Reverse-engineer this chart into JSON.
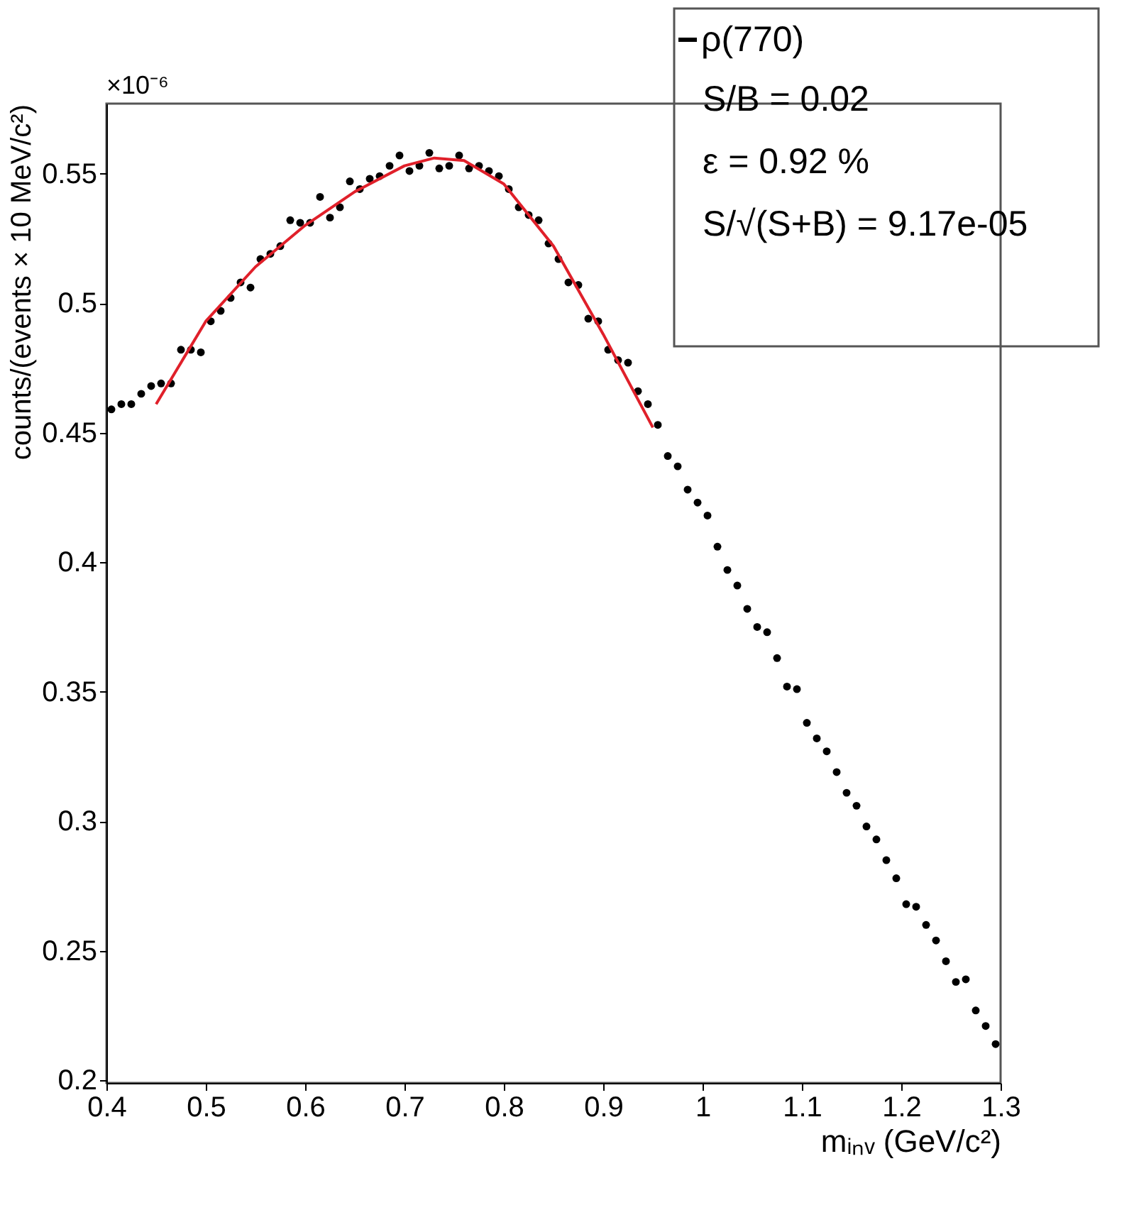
{
  "chart_data": {
    "type": "scatter",
    "xlabel": "mᵢₙᵥ (GeV/c²)",
    "ylabel": "counts/(events × 10 MeV/c²)",
    "xlim": [
      0.4,
      1.3
    ],
    "ylim": [
      0.199,
      0.577
    ],
    "xticks": [
      0.4,
      0.5,
      0.6,
      0.7,
      0.8,
      0.9,
      1,
      1.1,
      1.2,
      1.3
    ],
    "yticks": [
      0.2,
      0.25,
      0.3,
      0.35,
      0.4,
      0.45,
      0.5,
      0.55
    ],
    "grid": false,
    "legend": "top right",
    "annotations": [
      "×10⁻⁶",
      "S/B = 0.02",
      "ε = 0.92 %",
      "S/√(S+B) = 9.17e-05"
    ],
    "series": [
      {
        "name": "ρ(770)",
        "color": "#000000",
        "marker": "circle",
        "x": [
          0.405,
          0.415,
          0.425,
          0.435,
          0.445,
          0.455,
          0.465,
          0.475,
          0.485,
          0.495,
          0.505,
          0.515,
          0.525,
          0.535,
          0.545,
          0.555,
          0.565,
          0.575,
          0.585,
          0.595,
          0.605,
          0.615,
          0.625,
          0.635,
          0.645,
          0.655,
          0.665,
          0.675,
          0.685,
          0.695,
          0.705,
          0.715,
          0.725,
          0.735,
          0.745,
          0.755,
          0.765,
          0.775,
          0.785,
          0.795,
          0.805,
          0.815,
          0.825,
          0.835,
          0.845,
          0.855,
          0.865,
          0.875,
          0.885,
          0.895,
          0.905,
          0.915,
          0.925,
          0.935,
          0.945,
          0.955,
          0.965,
          0.975,
          0.985,
          0.995,
          1.005,
          1.015,
          1.025,
          1.035,
          1.045,
          1.055,
          1.065,
          1.075,
          1.085,
          1.095,
          1.105,
          1.115,
          1.125,
          1.135,
          1.145,
          1.155,
          1.165,
          1.175,
          1.185,
          1.195,
          1.205,
          1.215,
          1.225,
          1.235,
          1.245,
          1.255,
          1.265,
          1.275,
          1.285,
          1.295
        ],
        "values": [
          0.459,
          0.461,
          0.461,
          0.465,
          0.468,
          0.469,
          0.469,
          0.482,
          0.482,
          0.481,
          0.493,
          0.497,
          0.502,
          0.508,
          0.506,
          0.517,
          0.519,
          0.522,
          0.532,
          0.531,
          0.531,
          0.541,
          0.533,
          0.537,
          0.547,
          0.544,
          0.548,
          0.549,
          0.553,
          0.557,
          0.551,
          0.553,
          0.558,
          0.552,
          0.553,
          0.557,
          0.552,
          0.553,
          0.551,
          0.549,
          0.544,
          0.537,
          0.534,
          0.532,
          0.523,
          0.517,
          0.508,
          0.507,
          0.494,
          0.493,
          0.482,
          0.478,
          0.477,
          0.466,
          0.461,
          0.453,
          0.441,
          0.437,
          0.428,
          0.423,
          0.418,
          0.406,
          0.397,
          0.391,
          0.382,
          0.375,
          0.373,
          0.363,
          0.352,
          0.351,
          0.338,
          0.332,
          0.327,
          0.319,
          0.311,
          0.306,
          0.298,
          0.293,
          0.285,
          0.278,
          0.268,
          0.267,
          0.26,
          0.254,
          0.246,
          0.238,
          0.239,
          0.227,
          0.221,
          0.214
        ]
      },
      {
        "type": "line",
        "color": "#e0202a",
        "marker": "none",
        "line_style": "solid",
        "x": [
          0.45,
          0.5,
          0.55,
          0.6,
          0.65,
          0.7,
          0.73,
          0.76,
          0.8,
          0.85,
          0.9,
          0.95
        ],
        "values": [
          0.461,
          0.493,
          0.514,
          0.53,
          0.543,
          0.553,
          0.556,
          0.555,
          0.546,
          0.522,
          0.488,
          0.452
        ]
      }
    ]
  }
}
